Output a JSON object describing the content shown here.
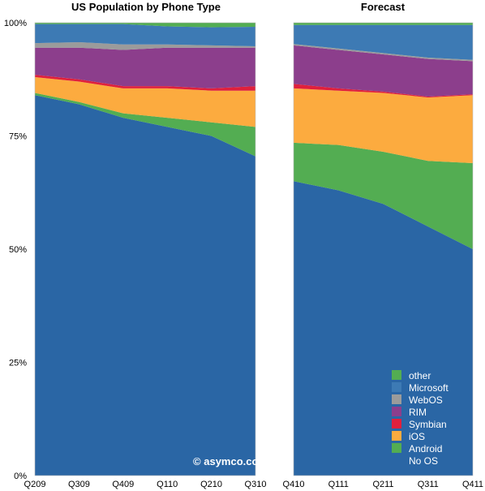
{
  "chart_data": {
    "type": "area",
    "stacked": true,
    "credit": "© asymco.com",
    "y_ticks": [
      "0%",
      "25%",
      "50%",
      "75%",
      "100%"
    ],
    "ylim": [
      0,
      100
    ],
    "legend": {
      "placement": "bottom-right",
      "order": [
        "other",
        "Microsoft",
        "WebOS",
        "RIM",
        "Symbian",
        "iOS",
        "Android",
        "No OS"
      ]
    },
    "colors": {
      "No OS": "#2a66a5",
      "Android": "#53ad52",
      "iOS": "#fcab3f",
      "Symbian": "#e0203c",
      "RIM": "#8c3e8c",
      "WebOS": "#9b9b9b",
      "Microsoft": "#3d7ab4",
      "other": "#53ad52"
    },
    "panels": [
      {
        "title": "US Population by Phone Type",
        "categories": [
          "Q209",
          "Q309",
          "Q409",
          "Q110",
          "Q210",
          "Q310"
        ],
        "series": [
          {
            "name": "No OS",
            "values": [
              84,
              82,
              79,
              77,
              75,
              70.5
            ]
          },
          {
            "name": "Android",
            "values": [
              0.5,
              0.5,
              1,
              2,
              3,
              6.5
            ]
          },
          {
            "name": "iOS",
            "values": [
              3.5,
              4.5,
              5.5,
              6.5,
              7,
              8
            ]
          },
          {
            "name": "Symbian",
            "values": [
              0.5,
              0.5,
              0.5,
              0.5,
              0.5,
              1
            ]
          },
          {
            "name": "RIM",
            "values": [
              6,
              7,
              8,
              8.5,
              9,
              8.5
            ]
          },
          {
            "name": "WebOS",
            "values": [
              1,
              1.2,
              1.2,
              0.7,
              0.5,
              0.3
            ]
          },
          {
            "name": "Microsoft",
            "values": [
              4.2,
              4,
              4.5,
              4,
              4,
              4.3
            ]
          },
          {
            "name": "other",
            "values": [
              0.3,
              0.3,
              0.3,
              0.8,
              1,
              0.9
            ]
          }
        ]
      },
      {
        "title": "Forecast",
        "categories": [
          "Q410",
          "Q111",
          "Q211",
          "Q311",
          "Q411"
        ],
        "series": [
          {
            "name": "No OS",
            "values": [
              65,
              63,
              60,
              55,
              50
            ]
          },
          {
            "name": "Android",
            "values": [
              8.5,
              10,
              11.5,
              14.5,
              19
            ]
          },
          {
            "name": "iOS",
            "values": [
              12,
              12,
              13,
              14,
              15
            ]
          },
          {
            "name": "Symbian",
            "values": [
              1,
              0.5,
              0.3,
              0.2,
              0.2
            ]
          },
          {
            "name": "RIM",
            "values": [
              8.5,
              8.5,
              8.2,
              8.3,
              7.3
            ]
          },
          {
            "name": "WebOS",
            "values": [
              0.3,
              0.3,
              0.3,
              0.3,
              0.3
            ]
          },
          {
            "name": "Microsoft",
            "values": [
              4.2,
              5.2,
              6.2,
              7.2,
              7.7
            ]
          },
          {
            "name": "other",
            "values": [
              0.5,
              0.5,
              0.5,
              0.5,
              0.5
            ]
          }
        ]
      }
    ]
  }
}
